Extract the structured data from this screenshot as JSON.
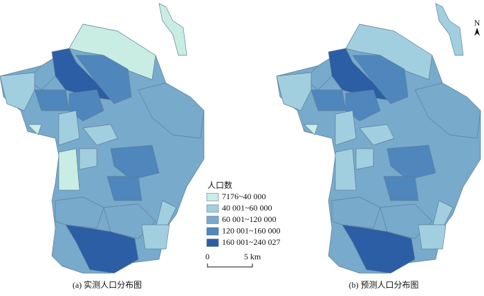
{
  "legend": {
    "title": "人口数",
    "items": [
      {
        "label": "7176~40 000",
        "color": "#c9ede3"
      },
      {
        "label": "40 001~60 000",
        "color": "#a2cfdf"
      },
      {
        "label": "60 001~120 000",
        "color": "#77aacb"
      },
      {
        "label": "120 001~160 000",
        "color": "#4f86bc"
      },
      {
        "label": "160 001~240 027",
        "color": "#2c5ea6"
      }
    ]
  },
  "scale_bar": {
    "start": "0",
    "end": "5 km"
  },
  "north_arrow": "N",
  "captions": [
    "(a) 实测人口分布图",
    "(b) 预测人口分布图"
  ]
}
